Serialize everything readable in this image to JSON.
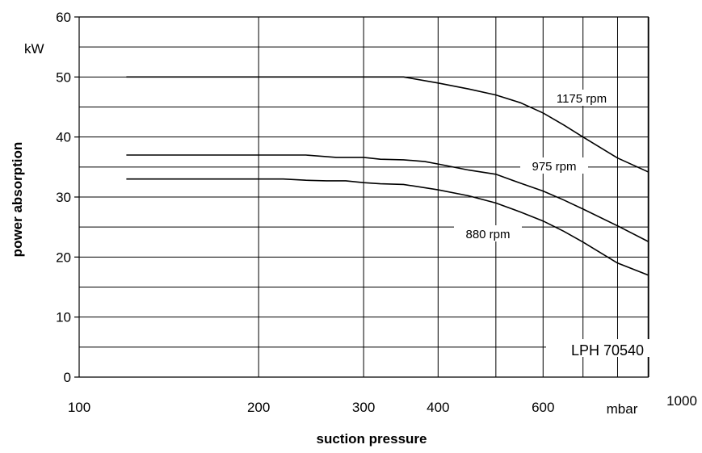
{
  "chart_data": {
    "type": "line",
    "title": "",
    "model_label": "LPH 70540",
    "xlabel": "suction pressure",
    "ylabel": "power absorption",
    "x_unit": "mbar",
    "y_unit": "kW",
    "x_scale": "log",
    "xlim": [
      100,
      1000
    ],
    "ylim": [
      0,
      60
    ],
    "x_ticks": [
      100,
      200,
      300,
      400,
      600,
      1000
    ],
    "x_tick_labels": [
      "100",
      "200",
      "300",
      "400",
      "600",
      "1000"
    ],
    "y_ticks": [
      0,
      10,
      20,
      30,
      40,
      50,
      60
    ],
    "y_tick_labels": [
      "0",
      "10",
      "20",
      "30",
      "40",
      "50",
      "60"
    ],
    "x_grid": [
      200,
      300,
      400,
      500,
      600,
      700,
      800,
      900
    ],
    "y_grid": [
      5,
      10,
      15,
      20,
      25,
      30,
      35,
      40,
      45,
      50,
      55
    ],
    "grid": true,
    "series": [
      {
        "name": "1175 rpm",
        "x": [
          120,
          200,
          300,
          350,
          400,
          450,
          500,
          550,
          600,
          650,
          700,
          800,
          900
        ],
        "y": [
          50,
          50,
          50,
          50,
          49,
          48,
          47,
          45.7,
          44,
          42,
          40,
          36.5,
          34.2
        ]
      },
      {
        "name": "975 rpm",
        "x": [
          120,
          200,
          240,
          270,
          300,
          320,
          350,
          380,
          400,
          450,
          500,
          550,
          600,
          650,
          700,
          800,
          900
        ],
        "y": [
          37,
          37,
          37,
          36.6,
          36.6,
          36.3,
          36.2,
          35.9,
          35.5,
          34.5,
          33.8,
          32.3,
          31,
          29.5,
          28,
          25.2,
          22.6
        ]
      },
      {
        "name": "880 rpm",
        "x": [
          120,
          200,
          220,
          240,
          260,
          280,
          300,
          320,
          350,
          400,
          450,
          500,
          550,
          600,
          650,
          700,
          800,
          900
        ],
        "y": [
          33,
          33,
          33,
          32.8,
          32.7,
          32.7,
          32.4,
          32.2,
          32.1,
          31.2,
          30.2,
          29,
          27.5,
          26,
          24.3,
          22.5,
          19,
          17
        ]
      }
    ]
  }
}
